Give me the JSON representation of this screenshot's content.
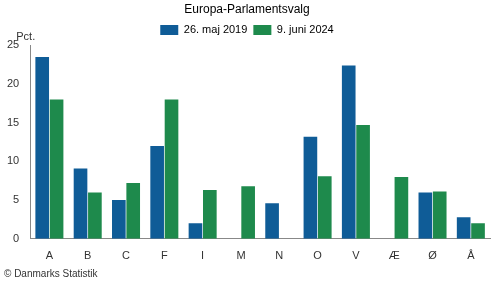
{
  "chart_data": {
    "type": "bar",
    "title": "Europa-Parlamentsvalg",
    "ylabel": "Pct.",
    "source": "© Danmarks Statistik",
    "categories": [
      "A",
      "B",
      "C",
      "F",
      "I",
      "M",
      "N",
      "O",
      "V",
      "Æ",
      "Ø",
      "Å"
    ],
    "series": [
      {
        "name": "26. maj 2019",
        "color": "#0f5c97",
        "values": [
          23.5,
          9.1,
          5.0,
          12.0,
          2.0,
          null,
          4.6,
          13.2,
          22.4,
          null,
          6.0,
          2.8
        ]
      },
      {
        "name": "9. juni 2024",
        "color": "#1e8a4c",
        "values": [
          18.0,
          6.0,
          7.2,
          18.0,
          6.3,
          6.8,
          null,
          8.1,
          14.7,
          8.0,
          6.1,
          2.0
        ]
      }
    ],
    "ylim": [
      0,
      25
    ],
    "yticks": [
      0,
      5,
      10,
      15,
      20,
      25
    ],
    "grid": false,
    "legend": "top"
  }
}
